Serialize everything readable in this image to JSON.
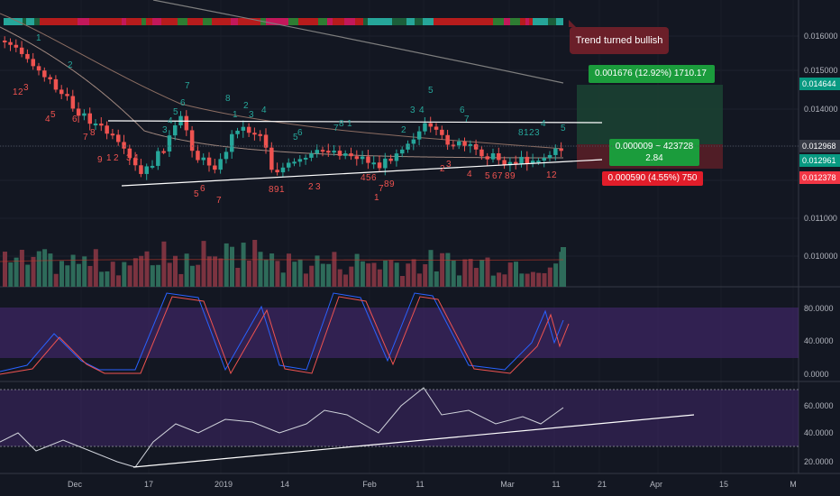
{
  "chart_data": {
    "type": "candlestick",
    "price_axis": {
      "ticks": [
        "0.016000",
        "0.015000",
        "0.014000",
        "0.011000",
        "0.010000"
      ],
      "badges": [
        {
          "value": "0.014644",
          "color": "#089981"
        },
        {
          "value": "0.012968",
          "color": "#363a45"
        },
        {
          "value": "0.012961",
          "color": "#089981"
        },
        {
          "value": "0.012378",
          "color": "#f23645"
        }
      ]
    },
    "stoch_axis": {
      "ticks": [
        "80.0000",
        "40.0000",
        "0.0000"
      ]
    },
    "rsi_axis": {
      "ticks": [
        "60.0000",
        "40.0000",
        "20.0000"
      ]
    },
    "time_axis": [
      "Dec",
      "17",
      "2019",
      "14",
      "Feb",
      "11",
      "Mar",
      "11",
      "21",
      "Apr",
      "15",
      "M"
    ],
    "annotations": {
      "trend_callout": "Trend turned bullish",
      "target_label": "0.001676 (12.92%) 1710.17",
      "stop_label": "0.000590 (4.55%) 750",
      "entry_label_line1": "0.000009 ~ 423728",
      "entry_label_line2": "2.84"
    },
    "td_counts": {
      "green": [
        "1",
        "2",
        "3",
        "4",
        "5",
        "6",
        "7",
        "8"
      ],
      "red": [
        "1",
        "2",
        "3",
        "4",
        "5",
        "6",
        "7",
        "8",
        "9"
      ]
    },
    "colors": {
      "up": "#26a69a",
      "down": "#ef5350",
      "panel": "#4a2a78",
      "background": "#131722"
    }
  }
}
